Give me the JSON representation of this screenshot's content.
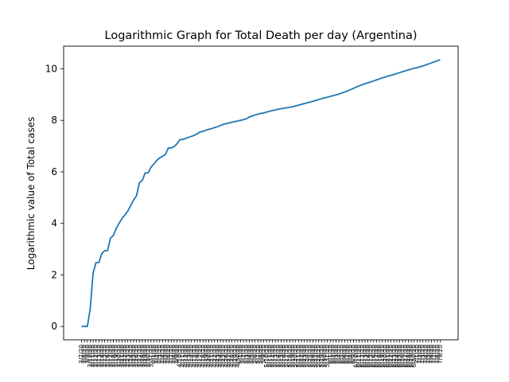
{
  "chart_data": {
    "type": "line",
    "title": "Logarithmic Graph for Total Death per day (Argentina)",
    "xlabel": "",
    "ylabel": "Logarithmic value of Total cases",
    "ylim": [
      -0.52,
      10.88
    ],
    "yticks": [
      0,
      2,
      4,
      6,
      8,
      10
    ],
    "x_start_date": "2020-03-07",
    "x_first_label": "3/7/20",
    "x_last_label": "8/14/20",
    "series": [
      {
        "color": "#1f77b4",
        "values": [
          0.0,
          0.0,
          0.0,
          0.69,
          2.08,
          2.48,
          2.48,
          2.83,
          2.94,
          2.94,
          3.43,
          3.53,
          3.81,
          4.01,
          4.19,
          4.33,
          4.48,
          4.69,
          4.91,
          5.07,
          5.58,
          5.67,
          5.96,
          5.96,
          6.18,
          6.31,
          6.44,
          6.54,
          6.6,
          6.68,
          6.93,
          6.93,
          6.98,
          7.09,
          7.25,
          7.26,
          7.3,
          7.34,
          7.38,
          7.42,
          7.48,
          7.55,
          7.57,
          7.62,
          7.65,
          7.68,
          7.72,
          7.75,
          7.8,
          7.84,
          7.87,
          7.9,
          7.93,
          7.95,
          7.98,
          8.0,
          8.03,
          8.06,
          8.13,
          8.17,
          8.21,
          8.24,
          8.27,
          8.29,
          8.32,
          8.35,
          8.38,
          8.4,
          8.43,
          8.45,
          8.47,
          8.49,
          8.51,
          8.53,
          8.56,
          8.59,
          8.62,
          8.65,
          8.68,
          8.71,
          8.74,
          8.77,
          8.81,
          8.84,
          8.87,
          8.9,
          8.93,
          8.96,
          8.99,
          9.02,
          9.06,
          9.1,
          9.14,
          9.19,
          9.24,
          9.29,
          9.34,
          9.38,
          9.42,
          9.46,
          9.49,
          9.53,
          9.57,
          9.61,
          9.65,
          9.68,
          9.72,
          9.75,
          9.78,
          9.82,
          9.85,
          9.89,
          9.92,
          9.96,
          9.99,
          10.02,
          10.05,
          10.08,
          10.11,
          10.15,
          10.19,
          10.23,
          10.27,
          10.31,
          10.35
        ]
      }
    ]
  }
}
